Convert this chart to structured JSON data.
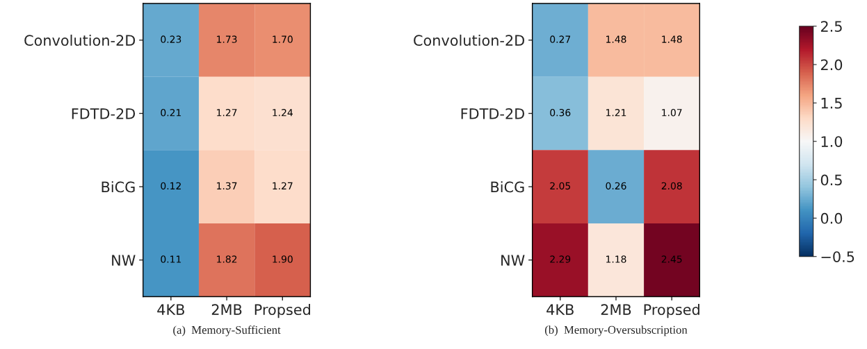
{
  "chart_data": [
    {
      "type": "heatmap",
      "xlabel": "(a)  Memory-Sufficient",
      "categories": [
        "4KB",
        "2MB",
        "Propsed"
      ],
      "y_categories": [
        "Convolution-2D",
        "FDTD-2D",
        "BiCG",
        "NW"
      ],
      "cells": [
        [
          0.23,
          1.73,
          1.7
        ],
        [
          0.21,
          1.27,
          1.24
        ],
        [
          0.12,
          1.37,
          1.27
        ],
        [
          0.11,
          1.82,
          1.9
        ]
      ],
      "cell_labels": [
        [
          "0.23",
          "1.73",
          "1.70"
        ],
        [
          "0.21",
          "1.27",
          "1.24"
        ],
        [
          "0.12",
          "1.37",
          "1.27"
        ],
        [
          "0.11",
          "1.82",
          "1.90"
        ]
      ]
    },
    {
      "type": "heatmap",
      "xlabel": "(b)  Memory-Oversubscription",
      "categories": [
        "4KB",
        "2MB",
        "Propsed"
      ],
      "y_categories": [
        "Convolution-2D",
        "FDTD-2D",
        "BiCG",
        "NW"
      ],
      "cells": [
        [
          0.27,
          1.48,
          1.48
        ],
        [
          0.36,
          1.21,
          1.07
        ],
        [
          2.05,
          0.26,
          2.08
        ],
        [
          2.29,
          1.18,
          2.45
        ]
      ],
      "cell_labels": [
        [
          "0.27",
          "1.48",
          "1.48"
        ],
        [
          "0.36",
          "1.21",
          "1.07"
        ],
        [
          "2.05",
          "0.26",
          "2.08"
        ],
        [
          "2.29",
          "1.18",
          "2.45"
        ]
      ],
      "clim": [
        -0.5,
        2.5
      ],
      "cticks": [
        {
          "value": -0.5,
          "label": "−0.5"
        },
        {
          "value": 0.0,
          "label": "0.0"
        },
        {
          "value": 0.5,
          "label": "0.5"
        },
        {
          "value": 1.0,
          "label": "1.0"
        },
        {
          "value": 1.5,
          "label": "1.5"
        },
        {
          "value": 2.0,
          "label": "2.0"
        },
        {
          "value": 2.5,
          "label": "2.5"
        }
      ]
    }
  ]
}
